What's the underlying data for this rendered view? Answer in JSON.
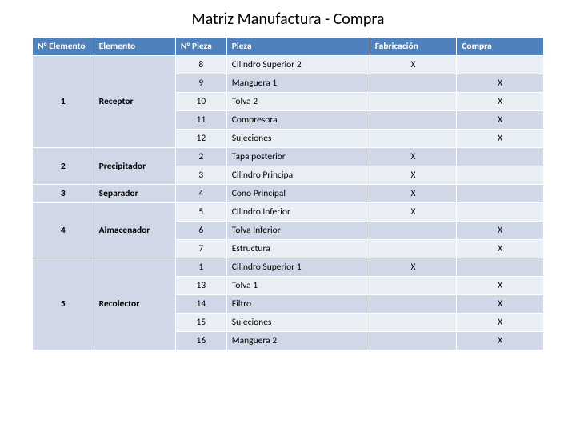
{
  "title": "Matriz Manufactura - Compra",
  "columns": [
    "N° Elemento",
    "Elemento",
    "N° Pieza",
    "Pieza",
    "Fabricación",
    "Compra"
  ],
  "groups": [
    {
      "num": "1",
      "name": "Receptor",
      "rows": [
        {
          "np": "8",
          "pieza": "Cilindro Superior 2",
          "fab": "X",
          "com": ""
        },
        {
          "np": "9",
          "pieza": "Manguera 1",
          "fab": "",
          "com": "X"
        },
        {
          "np": "10",
          "pieza": "Tolva 2",
          "fab": "",
          "com": "X"
        },
        {
          "np": "11",
          "pieza": "Compresora",
          "fab": "",
          "com": "X"
        },
        {
          "np": "12",
          "pieza": "Sujeciones",
          "fab": "",
          "com": "X"
        }
      ]
    },
    {
      "num": "2",
      "name": "Precipitador",
      "rows": [
        {
          "np": "2",
          "pieza": "Tapa posterior",
          "fab": "X",
          "com": ""
        },
        {
          "np": "3",
          "pieza": "Cilindro Principal",
          "fab": "X",
          "com": ""
        }
      ]
    },
    {
      "num": "3",
      "name": "Separador",
      "rows": [
        {
          "np": "4",
          "pieza": "Cono Principal",
          "fab": "X",
          "com": ""
        }
      ]
    },
    {
      "num": "4",
      "name": "Almacenador",
      "rows": [
        {
          "np": "5",
          "pieza": "Cilindro Inferior",
          "fab": "X",
          "com": ""
        },
        {
          "np": "6",
          "pieza": "Tolva Inferior",
          "fab": "",
          "com": "X"
        },
        {
          "np": "7",
          "pieza": "Estructura",
          "fab": "",
          "com": "X"
        }
      ]
    },
    {
      "num": "5",
      "name": "Recolector",
      "rows": [
        {
          "np": "1",
          "pieza": "Cilindro Superior 1",
          "fab": "X",
          "com": ""
        },
        {
          "np": "13",
          "pieza": "Tolva 1",
          "fab": "",
          "com": "X"
        },
        {
          "np": "14",
          "pieza": "Filtro",
          "fab": "",
          "com": "X"
        },
        {
          "np": "15",
          "pieza": "Sujeciones",
          "fab": "",
          "com": "X"
        },
        {
          "np": "16",
          "pieza": "Manguera 2",
          "fab": "",
          "com": "X"
        }
      ]
    }
  ],
  "colors": {
    "header_bg": "#4f81bd",
    "header_fg": "#ffffff",
    "group_bg": "#d0d8e8",
    "band1_bg": "#e9edf4",
    "band2_bg": "#d0d8e8",
    "border": "#ffffff"
  }
}
